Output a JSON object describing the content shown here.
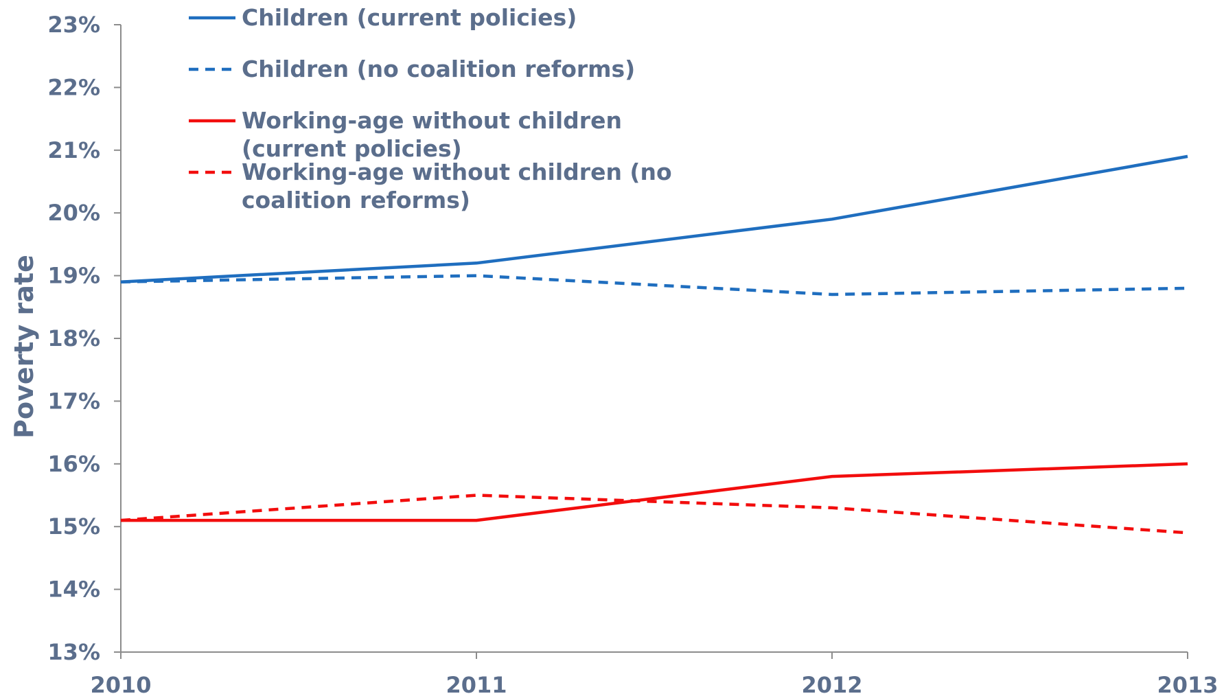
{
  "chart_data": {
    "type": "line",
    "title": "",
    "xlabel": "",
    "ylabel": "Poverty rate",
    "x": [
      "2010",
      "2011",
      "2012",
      "2013"
    ],
    "ylim": [
      0.13,
      0.23
    ],
    "yticks": [
      "13%",
      "14%",
      "15%",
      "16%",
      "17%",
      "18%",
      "19%",
      "20%",
      "21%",
      "22%",
      "23%"
    ],
    "grid": false,
    "legend_position": "top-left",
    "series": [
      {
        "name": "Children (current policies)",
        "values": [
          0.189,
          0.192,
          0.199,
          0.209
        ],
        "color": "#1F6EBF",
        "dashed": false
      },
      {
        "name": "Children (no coalition reforms)",
        "values": [
          0.189,
          0.19,
          0.187,
          0.188
        ],
        "color": "#1F6EBF",
        "dashed": true
      },
      {
        "name": "Working-age without children (current policies)",
        "values": [
          0.151,
          0.151,
          0.158,
          0.16
        ],
        "color": "#F20D0D",
        "dashed": false
      },
      {
        "name": "Working-age without children (no coalition reforms)",
        "values": [
          0.151,
          0.155,
          0.153,
          0.149
        ],
        "color": "#F20D0D",
        "dashed": true
      }
    ]
  }
}
